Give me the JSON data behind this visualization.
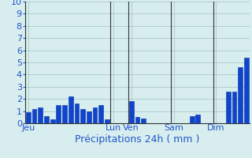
{
  "bar_values": [
    0.9,
    1.2,
    1.3,
    0.6,
    0.3,
    1.5,
    1.5,
    2.2,
    1.6,
    1.2,
    1.0,
    1.3,
    1.5,
    0.3,
    0.0,
    0.0,
    0.0,
    1.8,
    0.5,
    0.4,
    0.0,
    0.0,
    0.0,
    0.0,
    0.0,
    0.0,
    0.0,
    0.6,
    0.7,
    0.0,
    0.0,
    0.0,
    0.0,
    2.6,
    2.6,
    4.6,
    5.4
  ],
  "xlabel": "Précipitations 24h ( mm )",
  "ylim": [
    0,
    10
  ],
  "yticks": [
    0,
    1,
    2,
    3,
    4,
    5,
    6,
    7,
    8,
    9,
    10
  ],
  "background_color": "#d8eeee",
  "grid_color": "#a8c8c8",
  "bar_color": "#1144cc",
  "bar_edge_color": "#0033aa",
  "day_labels": [
    "Jeu",
    "Lun",
    "Ven",
    "Sam",
    "Dim"
  ],
  "day_positions": [
    0,
    14,
    17,
    24,
    31
  ],
  "vline_positions": [
    13.5,
    16.5,
    23.5,
    30.5
  ],
  "xlabel_color": "#2255cc",
  "xlabel_fontsize": 9,
  "tick_color": "#2255cc",
  "ytick_fontsize": 8,
  "xtick_fontsize": 8,
  "n_bars": 37,
  "bar_width": 0.75
}
